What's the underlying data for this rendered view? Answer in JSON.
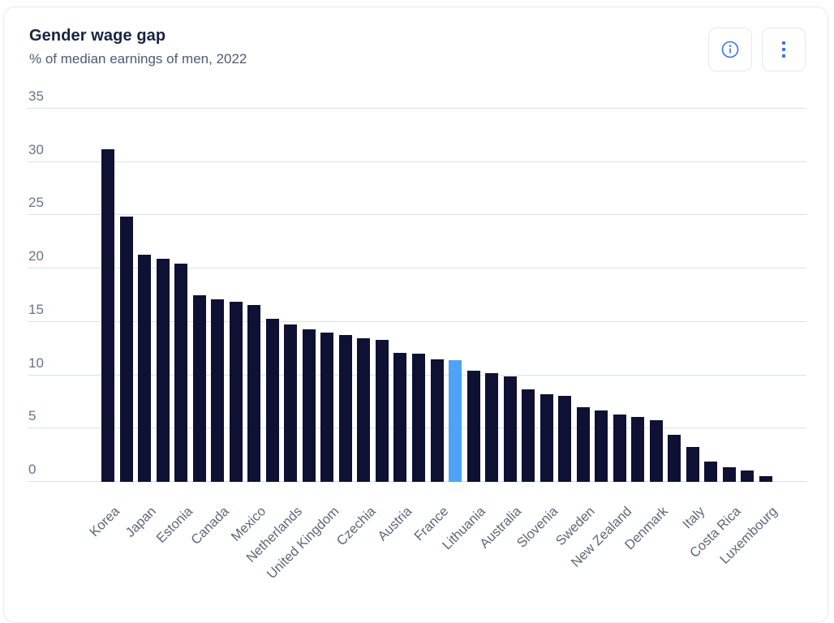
{
  "header": {
    "title": "Gender wage gap",
    "subtitle": "% of median earnings of men, 2022",
    "buttons": [
      {
        "label": "info",
        "icon": "info-icon"
      },
      {
        "label": "more options",
        "icon": "kebab-menu-icon"
      }
    ]
  },
  "colors": {
    "bar": "#0e1034",
    "highlight": "#4da3f7",
    "gridline": "#dbe0e8",
    "axis_label": "#697386",
    "xaxis_label": "#5d6679",
    "title": "#182440",
    "subtitle": "#4c5a72",
    "icon_blue": "#3b71e8",
    "card_border": "#e4e8ef"
  },
  "chart_data": {
    "type": "bar",
    "title": "Gender wage gap",
    "subtitle": "% of median earnings of men, 2022",
    "xlabel": "",
    "ylabel": "% of median earnings of men",
    "ylim": [
      0,
      35
    ],
    "yticks": [
      0,
      5,
      10,
      15,
      20,
      25,
      30,
      35
    ],
    "grid": "horizontal",
    "legend": "none",
    "tick_labels_shown_every": 2,
    "bars": [
      {
        "label": "Korea",
        "value": 31.2
      },
      {
        "label": "",
        "value": 24.9
      },
      {
        "label": "Japan",
        "value": 21.3
      },
      {
        "label": "",
        "value": 20.9
      },
      {
        "label": "Estonia",
        "value": 20.5
      },
      {
        "label": "",
        "value": 17.5
      },
      {
        "label": "Canada",
        "value": 17.1
      },
      {
        "label": "",
        "value": 16.9
      },
      {
        "label": "Mexico",
        "value": 16.6
      },
      {
        "label": "",
        "value": 15.3
      },
      {
        "label": "Netherlands",
        "value": 14.8
      },
      {
        "label": "",
        "value": 14.3
      },
      {
        "label": "United Kingdom",
        "value": 14.0
      },
      {
        "label": "",
        "value": 13.8
      },
      {
        "label": "Czechia",
        "value": 13.5
      },
      {
        "label": "",
        "value": 13.3
      },
      {
        "label": "Austria",
        "value": 12.1
      },
      {
        "label": "",
        "value": 12.0
      },
      {
        "label": "France",
        "value": 11.5
      },
      {
        "label": "",
        "value": 11.4,
        "highlight": true
      },
      {
        "label": "Lithuania",
        "value": 10.4
      },
      {
        "label": "",
        "value": 10.2
      },
      {
        "label": "Australia",
        "value": 9.9
      },
      {
        "label": "",
        "value": 8.7
      },
      {
        "label": "Slovenia",
        "value": 8.2
      },
      {
        "label": "",
        "value": 8.1
      },
      {
        "label": "Sweden",
        "value": 7.0
      },
      {
        "label": "",
        "value": 6.7
      },
      {
        "label": "New Zealand",
        "value": 6.3
      },
      {
        "label": "",
        "value": 6.1
      },
      {
        "label": "Denmark",
        "value": 5.8
      },
      {
        "label": "",
        "value": 4.4
      },
      {
        "label": "Italy",
        "value": 3.3
      },
      {
        "label": "",
        "value": 1.9
      },
      {
        "label": "Costa Rica",
        "value": 1.4
      },
      {
        "label": "",
        "value": 1.1
      },
      {
        "label": "Luxembourg",
        "value": 0.5
      }
    ]
  }
}
